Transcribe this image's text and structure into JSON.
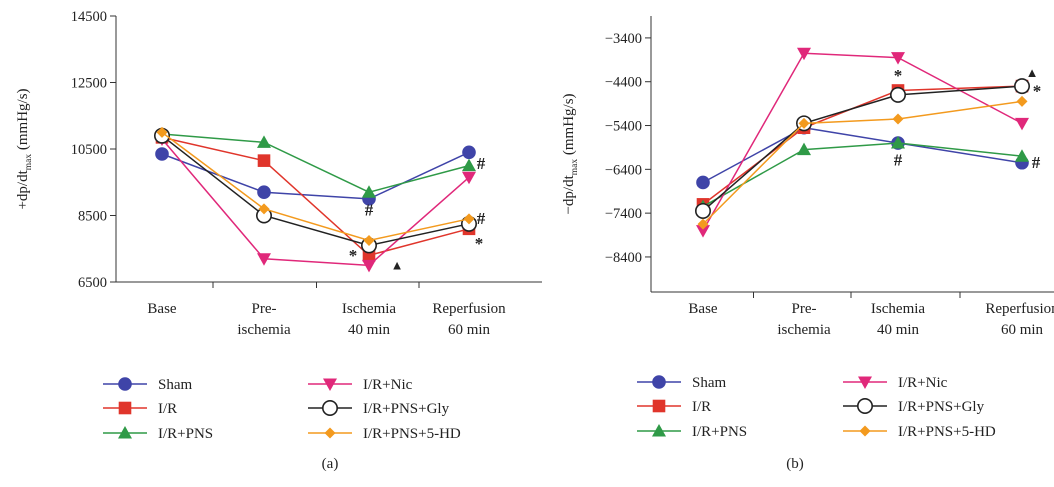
{
  "chart_data": [
    {
      "type": "line",
      "panel_label": "(a)",
      "ylabel": {
        "prefix": "+dp/dt",
        "subscript": "max",
        "unit": " (mmHg/s)"
      },
      "categories": [
        [
          "Base"
        ],
        [
          "Pre-",
          "ischemia"
        ],
        [
          "Ischemia",
          "40 min"
        ],
        [
          "Reperfusion",
          "60 min"
        ]
      ],
      "yticks": [
        6500,
        8500,
        10500,
        12500,
        14500
      ],
      "ytick_labels": [
        "6500",
        "8500",
        "10500",
        "12500",
        "14500"
      ],
      "ylim": [
        6500,
        14500
      ],
      "series": [
        {
          "name": "Sham",
          "color": "#3f44a8",
          "marker": "circle",
          "values": [
            10350,
            9200,
            9000,
            10400
          ]
        },
        {
          "name": "I/R",
          "color": "#e0352b",
          "marker": "square",
          "values": [
            10850,
            10150,
            7300,
            8100
          ]
        },
        {
          "name": "I/R+PNS",
          "color": "#2f9a47",
          "marker": "triangle-up",
          "values": [
            10950,
            10700,
            9200,
            10000
          ]
        },
        {
          "name": "I/R+Nic",
          "color": "#e0287a",
          "marker": "triangle-down",
          "values": [
            10800,
            7200,
            7000,
            9650
          ]
        },
        {
          "name": "I/R+PNS+Gly",
          "color": "#222222",
          "marker": "open-circle",
          "values": [
            10900,
            8500,
            7600,
            8250
          ]
        },
        {
          "name": "I/R+PNS+5-HD",
          "color": "#f39a1e",
          "marker": "diamond",
          "values": [
            11000,
            8700,
            7750,
            8400
          ]
        }
      ],
      "annotations": [
        {
          "text": "*",
          "color": "#e0352b",
          "cat": 2,
          "value": 7250,
          "dx": -16,
          "dy": 4
        },
        {
          "text": "▲",
          "color": "#111111",
          "cat": 2,
          "value": 7000,
          "dx": 28,
          "dy": 4,
          "size": 13
        },
        {
          "text": "#",
          "color": "#2f9a47",
          "cat": 2,
          "value": 8650,
          "dx": 0,
          "dy": 5
        },
        {
          "text": "#",
          "color": "#2f9a47",
          "cat": 3,
          "value": 10050,
          "dx": 12,
          "dy": 5
        },
        {
          "text": "#",
          "color": "#e0287a",
          "cat": 3,
          "value": 8400,
          "dx": 12,
          "dy": 5
        },
        {
          "text": "*",
          "color": "#e0352b",
          "cat": 3,
          "value": 7650,
          "dx": 10,
          "dy": 5
        }
      ]
    },
    {
      "type": "line",
      "panel_label": "(b)",
      "ylabel": {
        "prefix": "−dp/dt",
        "subscript": "max",
        "unit": " (mmHg/s)"
      },
      "categories": [
        [
          "Base"
        ],
        [
          "Pre-",
          "ischemia"
        ],
        [
          "Ischemia",
          "40 min"
        ],
        [
          "Reperfusion",
          "60 min"
        ]
      ],
      "yticks": [
        -8400,
        -7400,
        -6400,
        -5400,
        -4400,
        -3400
      ],
      "ytick_labels": [
        "−8400",
        "−7400",
        "−6400",
        "−5400",
        "−4400",
        "−3400"
      ],
      "ylim": [
        -9200,
        -2900
      ],
      "series": [
        {
          "name": "Sham",
          "color": "#3f44a8",
          "marker": "circle",
          "values": [
            -6700,
            -5450,
            -5800,
            -6250
          ]
        },
        {
          "name": "I/R",
          "color": "#e0352b",
          "marker": "square",
          "values": [
            -7200,
            -5450,
            -4600,
            -4500
          ]
        },
        {
          "name": "I/R+PNS",
          "color": "#2f9a47",
          "marker": "triangle-up",
          "values": [
            -7250,
            -5950,
            -5800,
            -6100
          ]
        },
        {
          "name": "I/R+Nic",
          "color": "#e0287a",
          "marker": "triangle-down",
          "values": [
            -7800,
            -3750,
            -3850,
            -5350
          ]
        },
        {
          "name": "I/R+PNS+Gly",
          "color": "#222222",
          "marker": "open-circle",
          "values": [
            -7350,
            -5350,
            -4700,
            -4500
          ]
        },
        {
          "name": "I/R+PNS+5-HD",
          "color": "#f39a1e",
          "marker": "diamond",
          "values": [
            -7650,
            -5350,
            -5250,
            -4850
          ]
        }
      ],
      "annotations": [
        {
          "text": "*",
          "color": "#e0352b",
          "cat": 2,
          "value": -4250,
          "dx": 0,
          "dy": 6
        },
        {
          "text": "#",
          "color": "#2f9a47",
          "cat": 2,
          "value": -6200,
          "dx": 0,
          "dy": 5
        },
        {
          "text": "▲",
          "color": "#111111",
          "cat": 3,
          "value": -4200,
          "dx": 10,
          "dy": 4,
          "size": 13
        },
        {
          "text": "*",
          "color": "#e0352b",
          "cat": 3,
          "value": -4600,
          "dx": 15,
          "dy": 6
        },
        {
          "text": "#",
          "color": "#2f9a47",
          "cat": 3,
          "value": -6250,
          "dx": 14,
          "dy": 5
        }
      ]
    }
  ]
}
